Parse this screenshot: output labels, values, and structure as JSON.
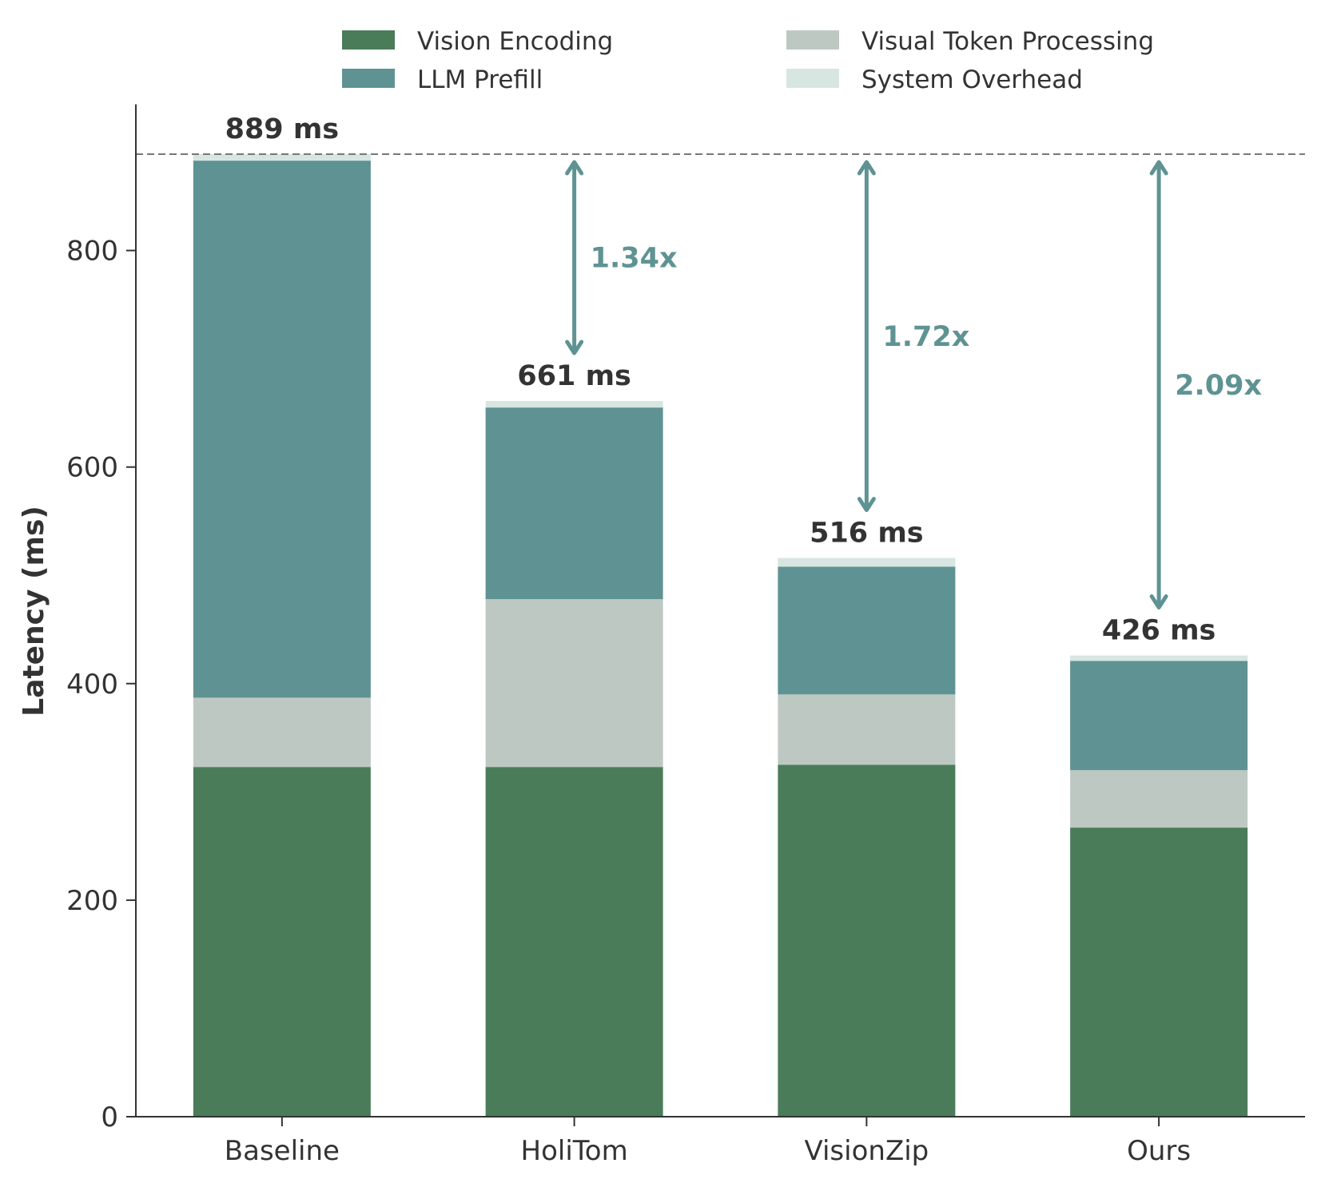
{
  "chart_data": {
    "type": "bar",
    "stacked": true,
    "ylabel": "Latency (ms)",
    "xlabel": "",
    "ylim": [
      0,
      935
    ],
    "yticks": [
      0,
      200,
      400,
      600,
      800
    ],
    "grid": false,
    "legend_position": "top",
    "categories": [
      "Baseline",
      "HoliTom",
      "VisionZip",
      "Ours"
    ],
    "series": [
      {
        "name": "Vision Encoding",
        "color": "#4a7c59",
        "values": [
          323,
          323,
          325,
          267
        ]
      },
      {
        "name": "Visual Token Processing",
        "color": "#bec8c2",
        "values": [
          64,
          155,
          65,
          53
        ]
      },
      {
        "name": "LLM Prefill",
        "color": "#5f9393",
        "values": [
          496,
          177,
          118,
          101
        ]
      },
      {
        "name": "System Overhead",
        "color": "#d7e6e0",
        "values": [
          6,
          6,
          8,
          5
        ]
      }
    ],
    "totals": [
      889,
      661,
      516,
      426
    ],
    "total_labels": [
      "889 ms",
      "661 ms",
      "516 ms",
      "426 ms"
    ],
    "reference_line": {
      "value": 889,
      "style": "dashed",
      "color": "#777777"
    },
    "speedups": [
      {
        "category": "HoliTom",
        "label": "1.34x"
      },
      {
        "category": "VisionZip",
        "label": "1.72x"
      },
      {
        "category": "Ours",
        "label": "2.09x"
      }
    ],
    "speedup_color": "#5f9393"
  }
}
